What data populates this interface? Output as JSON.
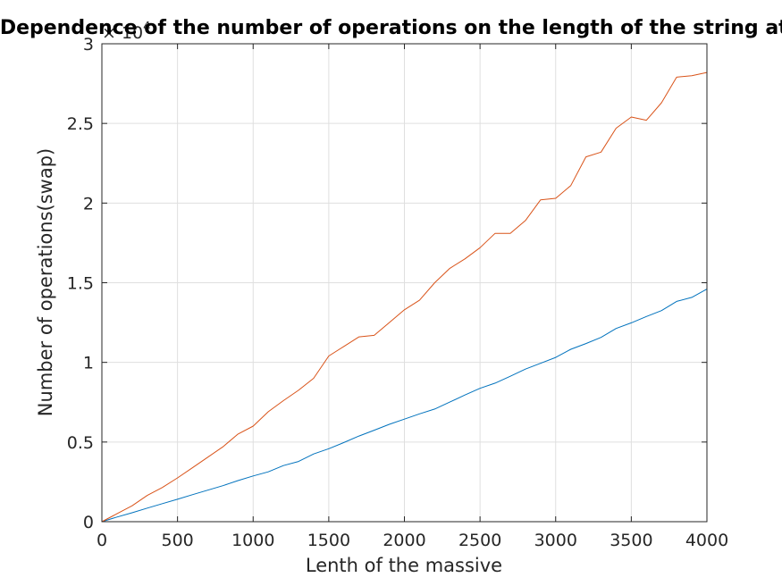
{
  "chart_data": {
    "type": "line",
    "title": "Dependence of the number of operations on the length of the string at a",
    "xlabel": "Lenth of the massive",
    "ylabel": "Number of operations(swap)",
    "xlim": [
      0,
      4000
    ],
    "ylim": [
      0,
      30000
    ],
    "x_ticks": [
      "0",
      "500",
      "1000",
      "1500",
      "2000",
      "2500",
      "3000",
      "3500",
      "4000"
    ],
    "y_ticks": [
      "0",
      "0.5",
      "1",
      "1.5",
      "2",
      "2.5",
      "3"
    ],
    "y_exponent_base": "× 10",
    "y_exponent_power": "4",
    "grid": true,
    "legend": "none",
    "series": [
      {
        "color": "#0072BD",
        "x": [
          0,
          100,
          200,
          300,
          400,
          500,
          600,
          700,
          800,
          900,
          1000,
          1100,
          1200,
          1300,
          1400,
          1500,
          1600,
          1700,
          1800,
          1900,
          2000,
          2100,
          2200,
          2300,
          2400,
          2500,
          2600,
          2700,
          2800,
          2900,
          3000,
          3100,
          3200,
          3300,
          3400,
          3500,
          3600,
          3700,
          3800,
          3900,
          4000
        ],
        "y": [
          0,
          290,
          560,
          850,
          1130,
          1410,
          1700,
          1980,
          2260,
          2580,
          2870,
          3130,
          3520,
          3780,
          4250,
          4580,
          4970,
          5380,
          5740,
          6110,
          6440,
          6770,
          7070,
          7510,
          7950,
          8370,
          8700,
          9130,
          9580,
          9940,
          10310,
          10820,
          11180,
          11570,
          12130,
          12480,
          12880,
          13250,
          13830,
          14080,
          14600
        ]
      },
      {
        "color": "#D95319",
        "x": [
          0,
          100,
          200,
          300,
          400,
          500,
          600,
          700,
          800,
          900,
          1000,
          1100,
          1200,
          1300,
          1400,
          1500,
          1600,
          1700,
          1800,
          1900,
          2000,
          2100,
          2200,
          2300,
          2400,
          2500,
          2600,
          2700,
          2800,
          2900,
          3000,
          3100,
          3200,
          3300,
          3400,
          3500,
          3600,
          3700,
          3800,
          3900,
          4000
        ],
        "y": [
          0,
          500,
          1000,
          1650,
          2150,
          2750,
          3400,
          4050,
          4700,
          5500,
          6000,
          6900,
          7600,
          8250,
          9000,
          10400,
          11000,
          11600,
          11700,
          12500,
          13300,
          13900,
          15000,
          15900,
          16500,
          17200,
          18100,
          18100,
          18900,
          20200,
          20300,
          21100,
          22900,
          23200,
          24700,
          25400,
          25200,
          26300,
          27900,
          28000,
          28200
        ]
      }
    ]
  }
}
